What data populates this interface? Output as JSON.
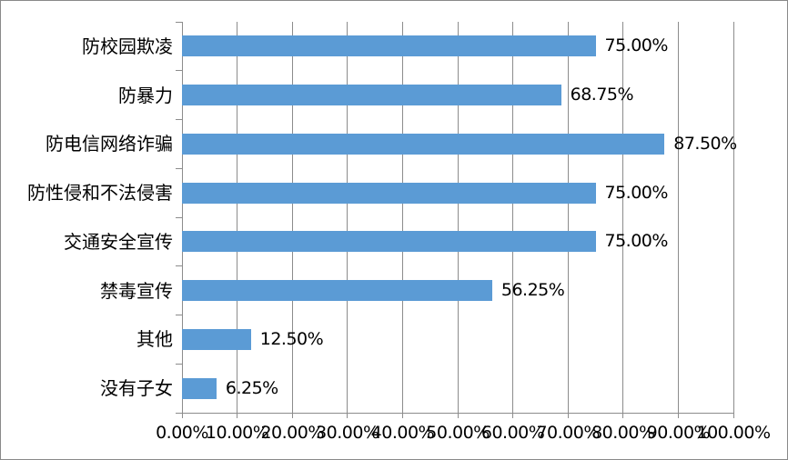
{
  "chart_data": {
    "type": "bar",
    "orientation": "horizontal",
    "title": "",
    "xlabel": "",
    "ylabel": "",
    "categories": [
      "防校园欺凌",
      "防暴力",
      "防电信网络诈骗",
      "防性侵和不法侵害",
      "交通安全宣传",
      "禁毒宣传",
      "其他",
      "没有子女"
    ],
    "values": [
      75.0,
      68.75,
      87.5,
      75.0,
      75.0,
      56.25,
      12.5,
      6.25
    ],
    "data_labels": [
      "75.00%",
      "68.75%",
      "87.50%",
      "75.00%",
      "75.00%",
      "56.25%",
      "12.50%",
      "6.25%"
    ],
    "xlim": [
      0,
      100
    ],
    "x_tick_labels": [
      "0.00%",
      "10.00%",
      "20.00%",
      "30.00%",
      "40.00%",
      "50.00%",
      "60.00%",
      "70.00%",
      "80.00%",
      "90.00%",
      "100.00%"
    ],
    "grid": "vertical-only",
    "legend": false,
    "colors": {
      "bar": "#5B9BD5",
      "gridline": "#8C8C8C",
      "axis": "#8C8C8C",
      "text": "#000000",
      "frame_border": "#898989",
      "background": "#FFFFFF"
    }
  }
}
